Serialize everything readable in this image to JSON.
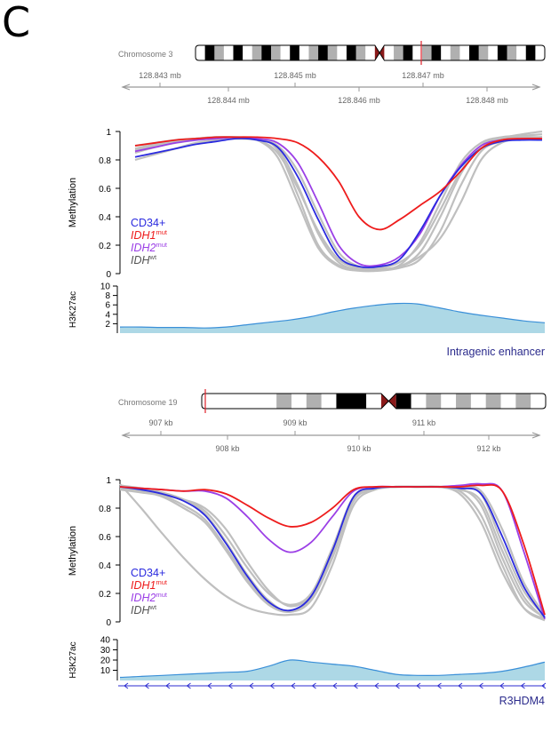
{
  "panel_label": "C",
  "colors": {
    "cd34": "#2a2adf",
    "idh1": "#ee1c1c",
    "idh2": "#9b3fe6",
    "idhwt": "#bfbfbf",
    "h3k27ac_fill": "#add8e6",
    "h3k27ac_line": "#3a8fd8",
    "feature_label": "#2b2b8c",
    "centromere": "#8b1a1a",
    "locus_marker": "#e0202a"
  },
  "legend": {
    "cd34": "CD34+",
    "idh1_gene": "IDH1",
    "idh1_sup": "mut",
    "idh2_gene": "IDH2",
    "idh2_sup": "mut",
    "idhwt_gene": "IDH",
    "idhwt_sup": "wt"
  },
  "chart_data": [
    {
      "type": "line",
      "region": "top",
      "ideogram": {
        "label": "Chromosome 3",
        "bands": [
          "w",
          "k",
          "g",
          "w",
          "k",
          "w",
          "g",
          "k",
          "g",
          "w",
          "k",
          "w",
          "g",
          "k",
          "g",
          "w",
          "k",
          "g",
          "w",
          "cen",
          "w",
          "g",
          "k",
          "w",
          "g",
          "k",
          "w",
          "g",
          "w",
          "k",
          "g",
          "w",
          "k",
          "g",
          "w",
          "k",
          "w"
        ]
      },
      "coordinate_axis": {
        "upper_ticks": [
          "128.843 mb",
          "128.845 mb",
          "128.847 mb"
        ],
        "lower_ticks": [
          "128.844 mb",
          "128.846 mb",
          "128.848 mb"
        ]
      },
      "methylation": {
        "ylabel": "Methylation",
        "ylim": [
          0,
          1
        ],
        "yticks": [
          "0",
          "0.2",
          "0.4",
          "0.6",
          "0.8",
          "1"
        ],
        "x": [
          0,
          0.05,
          0.1,
          0.15,
          0.2,
          0.25,
          0.3,
          0.35,
          0.4,
          0.45,
          0.5,
          0.55,
          0.6,
          0.65,
          0.7,
          0.75,
          0.8,
          0.85,
          0.9,
          0.95,
          1
        ],
        "series": [
          {
            "key": "idh1",
            "values": [
              0.9,
              0.92,
              0.94,
              0.95,
              0.96,
              0.96,
              0.96,
              0.95,
              0.92,
              0.82,
              0.65,
              0.4,
              0.31,
              0.38,
              0.48,
              0.58,
              0.72,
              0.88,
              0.94,
              0.95,
              0.95
            ]
          },
          {
            "key": "idh2",
            "values": [
              0.86,
              0.89,
              0.92,
              0.94,
              0.95,
              0.96,
              0.95,
              0.92,
              0.78,
              0.5,
              0.2,
              0.07,
              0.06,
              0.12,
              0.28,
              0.55,
              0.76,
              0.9,
              0.94,
              0.95,
              0.95
            ]
          },
          {
            "key": "cd34",
            "values": [
              0.82,
              0.85,
              0.88,
              0.91,
              0.93,
              0.95,
              0.94,
              0.89,
              0.68,
              0.38,
              0.12,
              0.05,
              0.05,
              0.1,
              0.3,
              0.55,
              0.75,
              0.88,
              0.93,
              0.94,
              0.94
            ]
          },
          {
            "key": "idhwt",
            "values": [
              0.88,
              0.91,
              0.93,
              0.95,
              0.96,
              0.96,
              0.95,
              0.87,
              0.55,
              0.2,
              0.06,
              0.03,
              0.03,
              0.05,
              0.15,
              0.4,
              0.7,
              0.9,
              0.95,
              0.96,
              0.96
            ]
          },
          {
            "key": "idhwt",
            "values": [
              0.85,
              0.89,
              0.92,
              0.94,
              0.95,
              0.95,
              0.94,
              0.85,
              0.6,
              0.3,
              0.1,
              0.04,
              0.03,
              0.06,
              0.22,
              0.5,
              0.78,
              0.92,
              0.96,
              0.97,
              0.98
            ]
          },
          {
            "key": "idhwt",
            "values": [
              0.9,
              0.92,
              0.94,
              0.95,
              0.96,
              0.96,
              0.94,
              0.82,
              0.5,
              0.18,
              0.05,
              0.02,
              0.02,
              0.04,
              0.1,
              0.3,
              0.62,
              0.86,
              0.93,
              0.95,
              0.96
            ]
          },
          {
            "key": "idhwt",
            "values": [
              0.8,
              0.84,
              0.88,
              0.92,
              0.94,
              0.95,
              0.94,
              0.9,
              0.72,
              0.42,
              0.15,
              0.05,
              0.04,
              0.08,
              0.2,
              0.45,
              0.72,
              0.88,
              0.95,
              0.98,
              1.0
            ]
          },
          {
            "key": "idhwt",
            "values": [
              0.87,
              0.9,
              0.93,
              0.95,
              0.96,
              0.96,
              0.95,
              0.88,
              0.62,
              0.28,
              0.08,
              0.03,
              0.03,
              0.05,
              0.12,
              0.25,
              0.5,
              0.8,
              0.92,
              0.95,
              0.96
            ]
          }
        ]
      },
      "h3k27ac": {
        "ylabel": "H3K27ac",
        "ylim": [
          0,
          10
        ],
        "yticks": [
          "2",
          "4",
          "6",
          "8",
          "10"
        ],
        "x": [
          0,
          0.05,
          0.1,
          0.15,
          0.2,
          0.25,
          0.3,
          0.35,
          0.4,
          0.45,
          0.5,
          0.55,
          0.6,
          0.65,
          0.7,
          0.75,
          0.8,
          0.85,
          0.9,
          0.95,
          1
        ],
        "values": [
          1.3,
          1.3,
          1.2,
          1.2,
          1.1,
          1.3,
          1.8,
          2.3,
          2.8,
          3.5,
          4.5,
          5.3,
          5.9,
          6.3,
          6.2,
          5.4,
          4.5,
          3.8,
          3.2,
          2.6,
          2.2
        ]
      },
      "feature_label": "Intragenic enhancer"
    },
    {
      "type": "line",
      "region": "bottom",
      "ideogram": {
        "label": "Chromosome 19",
        "bands": [
          "w",
          "w",
          "w",
          "w",
          "w",
          "g",
          "w",
          "g",
          "w",
          "k",
          "k",
          "w",
          "cen",
          "k",
          "w",
          "g",
          "w",
          "g",
          "w",
          "g",
          "w",
          "g",
          "w"
        ]
      },
      "coordinate_axis": {
        "upper_ticks": [
          "907 kb",
          "909 kb",
          "911 kb"
        ],
        "lower_ticks": [
          "908 kb",
          "910 kb",
          "912 kb"
        ]
      },
      "methylation": {
        "ylabel": "Methylation",
        "ylim": [
          0,
          1
        ],
        "yticks": [
          "0",
          "0.2",
          "0.4",
          "0.6",
          "0.8",
          "1"
        ],
        "x": [
          0,
          0.05,
          0.1,
          0.15,
          0.2,
          0.25,
          0.3,
          0.35,
          0.4,
          0.45,
          0.5,
          0.55,
          0.6,
          0.65,
          0.7,
          0.75,
          0.8,
          0.85,
          0.9,
          0.95,
          1
        ],
        "series": [
          {
            "key": "idh1",
            "values": [
              0.95,
              0.94,
              0.93,
              0.92,
              0.93,
              0.9,
              0.82,
              0.73,
              0.67,
              0.7,
              0.8,
              0.93,
              0.95,
              0.95,
              0.95,
              0.95,
              0.95,
              0.96,
              0.92,
              0.55,
              0.05
            ]
          },
          {
            "key": "idh2",
            "values": [
              0.95,
              0.94,
              0.93,
              0.92,
              0.92,
              0.87,
              0.74,
              0.58,
              0.49,
              0.56,
              0.74,
              0.92,
              0.95,
              0.95,
              0.95,
              0.95,
              0.96,
              0.97,
              0.92,
              0.5,
              0.02
            ]
          },
          {
            "key": "cd34",
            "values": [
              0.95,
              0.93,
              0.9,
              0.85,
              0.75,
              0.55,
              0.32,
              0.14,
              0.08,
              0.18,
              0.5,
              0.88,
              0.94,
              0.95,
              0.95,
              0.95,
              0.94,
              0.9,
              0.6,
              0.25,
              0.03
            ]
          },
          {
            "key": "idhwt",
            "values": [
              0.96,
              0.94,
              0.91,
              0.86,
              0.76,
              0.56,
              0.33,
              0.15,
              0.07,
              0.17,
              0.48,
              0.87,
              0.94,
              0.95,
              0.95,
              0.95,
              0.93,
              0.85,
              0.5,
              0.18,
              0.02
            ]
          },
          {
            "key": "idhwt",
            "values": [
              0.97,
              0.8,
              0.62,
              0.45,
              0.3,
              0.18,
              0.1,
              0.06,
              0.05,
              0.1,
              0.4,
              0.82,
              0.93,
              0.95,
              0.95,
              0.95,
              0.92,
              0.75,
              0.4,
              0.1,
              0.01
            ]
          },
          {
            "key": "idhwt",
            "values": [
              0.95,
              0.92,
              0.88,
              0.8,
              0.7,
              0.5,
              0.28,
              0.12,
              0.07,
              0.15,
              0.45,
              0.85,
              0.93,
              0.95,
              0.95,
              0.95,
              0.95,
              0.9,
              0.55,
              0.22,
              0.04
            ]
          },
          {
            "key": "idhwt",
            "values": [
              0.94,
              0.92,
              0.9,
              0.86,
              0.78,
              0.6,
              0.38,
              0.2,
              0.12,
              0.2,
              0.52,
              0.88,
              0.94,
              0.95,
              0.95,
              0.95,
              0.95,
              0.92,
              0.65,
              0.28,
              0.05
            ]
          },
          {
            "key": "idhwt",
            "values": [
              0.96,
              0.93,
              0.89,
              0.82,
              0.72,
              0.52,
              0.3,
              0.13,
              0.08,
              0.16,
              0.47,
              0.86,
              0.94,
              0.95,
              0.95,
              0.95,
              0.9,
              0.7,
              0.35,
              0.1,
              0.02
            ]
          },
          {
            "key": "idhwt",
            "values": [
              0.93,
              0.91,
              0.89,
              0.86,
              0.8,
              0.65,
              0.42,
              0.22,
              0.11,
              0.19,
              0.5,
              0.87,
              0.94,
              0.95,
              0.95,
              0.95,
              0.94,
              0.82,
              0.45,
              0.15,
              0.03
            ]
          }
        ]
      },
      "h3k27ac": {
        "ylabel": "H3K27ac",
        "ylim": [
          0,
          40
        ],
        "yticks": [
          "10",
          "20",
          "30",
          "40"
        ],
        "x": [
          0,
          0.05,
          0.1,
          0.15,
          0.2,
          0.25,
          0.3,
          0.35,
          0.4,
          0.45,
          0.5,
          0.55,
          0.6,
          0.65,
          0.7,
          0.75,
          0.8,
          0.85,
          0.9,
          0.95,
          1
        ],
        "values": [
          3,
          4,
          5,
          6,
          7,
          8,
          9,
          14,
          20,
          18,
          16,
          14,
          10,
          6,
          5,
          5,
          6,
          7,
          9,
          13,
          18
        ]
      },
      "gene_track_arrows": 21,
      "feature_label": "R3HDM4"
    }
  ]
}
